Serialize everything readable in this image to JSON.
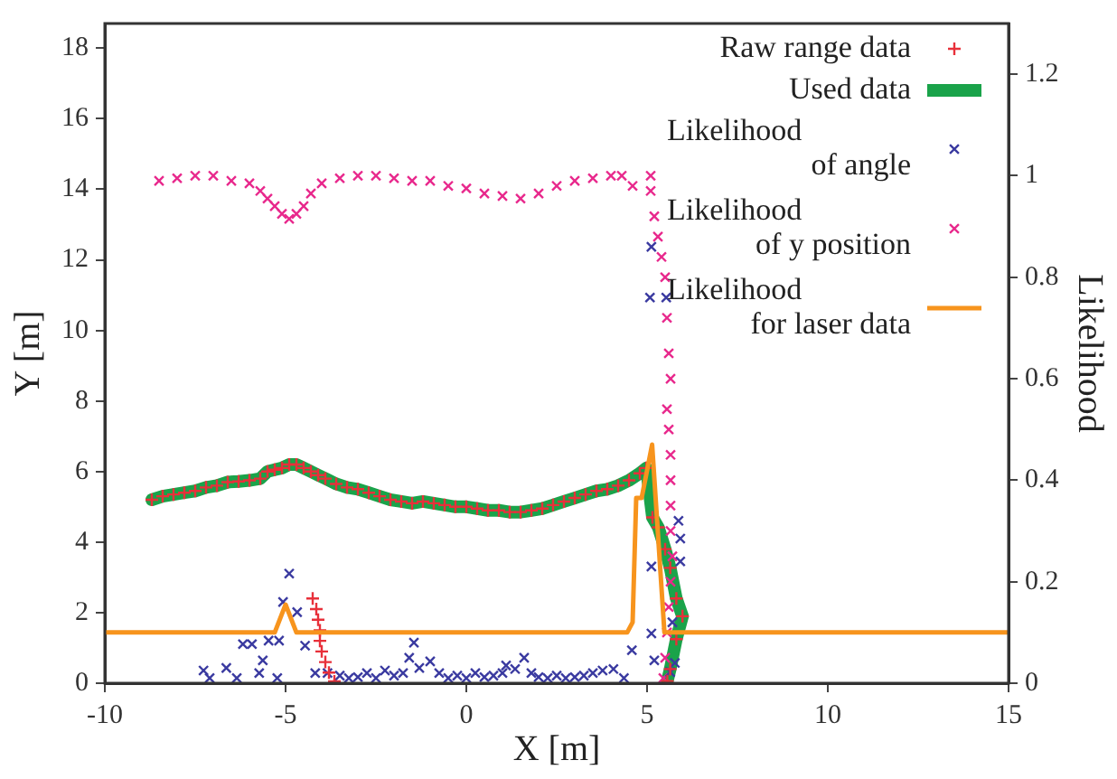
{
  "chart_data": {
    "type": "scatter",
    "xlabel": "X [m]",
    "ylabel": "Y [m]",
    "y2label": "Likelihood",
    "xlim": [
      -10,
      15
    ],
    "xticks": [
      -10,
      -5,
      0,
      5,
      10,
      15
    ],
    "ylim": [
      0,
      18.7
    ],
    "yticks": [
      0,
      2,
      4,
      6,
      8,
      10,
      12,
      14,
      16,
      18
    ],
    "y2lim": [
      0,
      1.3
    ],
    "y2ticks": [
      0,
      0.2,
      0.4,
      0.6,
      0.8,
      1,
      1.2
    ],
    "grid": false,
    "legend": "top right",
    "series": [
      {
        "name": "Raw range data",
        "type": "scatter",
        "marker": "cross",
        "color": "#e8303a",
        "x": [
          -8.7,
          -8.4,
          -8.1,
          -7.8,
          -7.5,
          -7.2,
          -6.9,
          -6.6,
          -6.3,
          -6,
          -5.7,
          -5.5,
          -5.3,
          -5.1,
          -4.9,
          -4.7,
          -4.5,
          -4.3,
          -4.1,
          -3.9,
          -3.6,
          -3.3,
          -3,
          -2.7,
          -2.4,
          -2.1,
          -1.8,
          -1.5,
          -1.2,
          -0.9,
          -0.6,
          -0.3,
          0,
          0.3,
          0.6,
          0.9,
          1.2,
          1.5,
          1.8,
          2.1,
          2.4,
          2.7,
          3,
          3.3,
          3.6,
          3.9,
          4.2,
          4.5,
          4.8,
          4.98,
          5.15,
          5.31,
          5.5,
          5.64,
          5.81,
          5.98,
          5.81,
          5.64,
          5.56,
          -4.25,
          -4.15,
          -4.1,
          -4.05,
          -4.05,
          -4,
          -3.9,
          -3.8,
          -3.65
        ],
        "values": [
          5.2,
          5.3,
          5.35,
          5.4,
          5.45,
          5.55,
          5.6,
          5.7,
          5.72,
          5.75,
          5.8,
          6,
          6.05,
          6.1,
          6.2,
          6.2,
          6.1,
          6,
          5.9,
          5.8,
          5.65,
          5.55,
          5.5,
          5.4,
          5.3,
          5.2,
          5.15,
          5.1,
          5.15,
          5.1,
          5.05,
          5,
          5,
          4.95,
          4.9,
          4.9,
          4.85,
          4.85,
          4.9,
          4.95,
          5.05,
          5.15,
          5.25,
          5.35,
          5.45,
          5.5,
          5.6,
          5.75,
          5.95,
          6.1,
          4.7,
          4.42,
          3.8,
          3.27,
          2.4,
          1.9,
          1.25,
          0.4,
          0.06,
          2.4,
          2.1,
          1.8,
          1.5,
          1.2,
          0.9,
          0.6,
          0.3,
          0.05
        ]
      },
      {
        "name": "Used data",
        "type": "line",
        "marker": "none",
        "line_style": "solid",
        "color": "#1aa34a",
        "x": [
          -8.7,
          -8.4,
          -8.1,
          -7.8,
          -7.5,
          -7.2,
          -6.9,
          -6.6,
          -6.3,
          -6,
          -5.7,
          -5.5,
          -5.3,
          -5.1,
          -4.9,
          -4.7,
          -4.5,
          -4.3,
          -4.1,
          -3.9,
          -3.6,
          -3.3,
          -3,
          -2.7,
          -2.4,
          -2.1,
          -1.8,
          -1.5,
          -1.2,
          -0.9,
          -0.6,
          -0.3,
          0,
          0.3,
          0.6,
          0.9,
          1.2,
          1.5,
          1.8,
          2.1,
          2.4,
          2.7,
          3,
          3.3,
          3.6,
          3.9,
          4.2,
          4.5,
          4.8,
          4.98,
          5.15,
          5.31,
          5.5,
          5.64,
          5.81,
          5.98,
          5.81,
          5.64,
          5.56
        ],
        "values": [
          5.2,
          5.3,
          5.35,
          5.4,
          5.45,
          5.55,
          5.6,
          5.7,
          5.72,
          5.75,
          5.8,
          6,
          6.05,
          6.1,
          6.2,
          6.2,
          6.1,
          6,
          5.9,
          5.8,
          5.65,
          5.55,
          5.5,
          5.4,
          5.3,
          5.2,
          5.15,
          5.1,
          5.15,
          5.1,
          5.05,
          5,
          5,
          4.95,
          4.9,
          4.9,
          4.85,
          4.85,
          4.9,
          4.95,
          5.05,
          5.15,
          5.25,
          5.35,
          5.45,
          5.5,
          5.6,
          5.75,
          5.95,
          6.1,
          4.7,
          4.42,
          3.8,
          3.27,
          2.4,
          1.9,
          1.25,
          0.4,
          0.06
        ]
      },
      {
        "name": "Likelihood\nof angle",
        "type": "scatter",
        "marker": "cross",
        "axis": "y2",
        "color": "#3a3aa0",
        "x": [
          -7.27,
          -7.1,
          -6.64,
          -6.35,
          -6.18,
          -5.93,
          -5.63,
          -5.73,
          -5.47,
          -5.23,
          -5.18,
          -5.07,
          -4.9,
          -4.68,
          -4.46,
          -4.18,
          -3.84,
          -3.5,
          -3.25,
          -3,
          -2.75,
          -2.5,
          -2.25,
          -2,
          -1.75,
          -1.58,
          -1.45,
          -1.3,
          -1,
          -0.75,
          -0.5,
          -0.25,
          0,
          0.25,
          0.5,
          0.75,
          1,
          1.1,
          1.35,
          1.6,
          1.8,
          2,
          2.25,
          2.5,
          2.75,
          3,
          3.25,
          3.5,
          3.77,
          4.07,
          4.36,
          4.58,
          5.12,
          5.12,
          5.08,
          5.12,
          5.53,
          5.2,
          5.87,
          5.92,
          5.92,
          5.7,
          5.77,
          5.64
        ],
        "values": [
          0.025,
          0.01,
          0.03,
          0.01,
          0.077,
          0.077,
          0.045,
          0.02,
          0.084,
          0.01,
          0.084,
          0.16,
          0.216,
          0.14,
          0.074,
          0.02,
          0.02,
          0.015,
          0.01,
          0.012,
          0.02,
          0.01,
          0.025,
          0.015,
          0.02,
          0.05,
          0.08,
          0.03,
          0.043,
          0.02,
          0.01,
          0.015,
          0.01,
          0.02,
          0.012,
          0.015,
          0.02,
          0.035,
          0.028,
          0.05,
          0.02,
          0.012,
          0.01,
          0.015,
          0.01,
          0.012,
          0.015,
          0.02,
          0.025,
          0.028,
          0.01,
          0.065,
          0.098,
          0.23,
          0.76,
          0.86,
          0.76,
          0.045,
          0.32,
          0.285,
          0.24,
          0.12,
          0.04,
          0.022
        ]
      },
      {
        "name": "Likelihood\nof y position",
        "type": "scatter",
        "marker": "cross",
        "axis": "y2",
        "color": "#e8288c",
        "x": [
          -8.5,
          -8,
          -7.5,
          -7,
          -6.5,
          -6,
          -5.7,
          -5.5,
          -5.3,
          -5.1,
          -4.9,
          -4.7,
          -4.5,
          -4.3,
          -4,
          -3.5,
          -3,
          -2.5,
          -2,
          -1.5,
          -1,
          -0.5,
          0,
          0.5,
          1,
          1.5,
          2,
          2.5,
          3,
          3.5,
          4,
          4.3,
          4.6,
          5.1,
          5.1,
          5.2,
          5.3,
          5.4,
          5.5,
          5.55,
          5.6,
          5.65,
          5.55,
          5.6,
          5.65,
          5.65,
          5.65,
          5.65,
          5.7,
          5.65,
          5.6,
          5.55,
          5.5,
          5.45
        ],
        "values": [
          0.99,
          0.995,
          1,
          1,
          0.99,
          0.985,
          0.97,
          0.955,
          0.94,
          0.925,
          0.915,
          0.925,
          0.94,
          0.965,
          0.985,
          0.995,
          1,
          1,
          0.995,
          0.99,
          0.99,
          0.98,
          0.975,
          0.965,
          0.96,
          0.955,
          0.965,
          0.98,
          0.99,
          0.995,
          1,
          1,
          0.98,
          1,
          0.97,
          0.92,
          0.88,
          0.84,
          0.8,
          0.72,
          0.65,
          0.6,
          0.54,
          0.5,
          0.45,
          0.4,
          0.35,
          0.3,
          0.25,
          0.2,
          0.15,
          0.1,
          0.05,
          0.01
        ]
      },
      {
        "name": "Likelihood\nfor laser data",
        "type": "line",
        "marker": "none",
        "line_style": "solid",
        "axis": "y2",
        "color": "#f7941d",
        "x": [
          -10,
          -5.3,
          -5,
          -4.7,
          4.45,
          4.6,
          4.7,
          4.85,
          5.14,
          5.48,
          15
        ],
        "values": [
          0.1,
          0.1,
          0.155,
          0.1,
          0.1,
          0.12,
          0.365,
          0.365,
          0.47,
          0.1,
          0.1
        ]
      }
    ]
  }
}
